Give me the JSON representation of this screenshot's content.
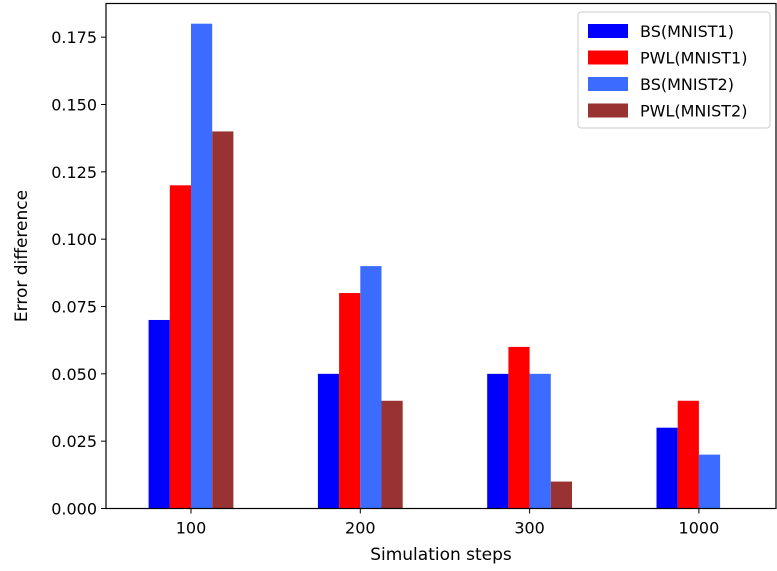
{
  "chart_data": {
    "type": "bar",
    "categories": [
      "100",
      "200",
      "300",
      "1000"
    ],
    "series": [
      {
        "name": "BS(MNIST1)",
        "color": "#0000ff",
        "values": [
          0.07,
          0.05,
          0.05,
          0.03
        ]
      },
      {
        "name": "PWL(MNIST1)",
        "color": "#ff0000",
        "values": [
          0.12,
          0.08,
          0.06,
          0.04
        ]
      },
      {
        "name": "BS(MNIST2)",
        "color": "#3b6cff",
        "values": [
          0.18,
          0.09,
          0.05,
          0.02
        ]
      },
      {
        "name": "PWL(MNIST2)",
        "color": "#993333",
        "values": [
          0.14,
          0.04,
          0.01,
          0.0
        ]
      }
    ],
    "xlabel": "Simulation steps",
    "ylabel": "Error difference",
    "ylim": [
      0,
      0.1875
    ],
    "yticks": [
      "0.000",
      "0.025",
      "0.050",
      "0.075",
      "0.100",
      "0.125",
      "0.150",
      "0.175"
    ],
    "grid": false,
    "legend": "top-right"
  }
}
